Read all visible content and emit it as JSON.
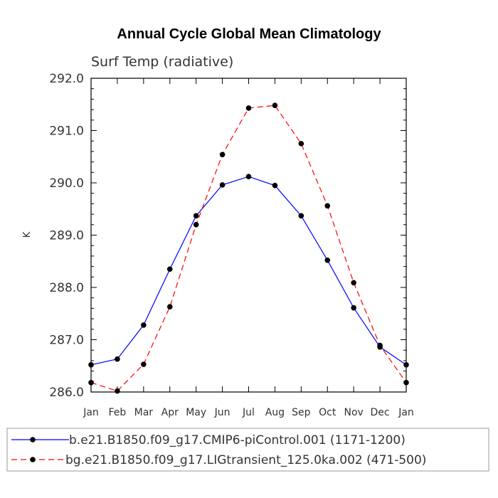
{
  "chart_data": {
    "type": "line",
    "title": "Annual Cycle Global Mean Climatology",
    "subtitle": "Surf Temp (radiative)",
    "ylabel": "K",
    "xlabel": "",
    "categories": [
      "Jan",
      "Feb",
      "Mar",
      "Apr",
      "May",
      "Jun",
      "Jul",
      "Aug",
      "Sep",
      "Oct",
      "Nov",
      "Dec",
      "Jan"
    ],
    "ylim": [
      286.0,
      292.0
    ],
    "yticks": [
      286.0,
      287.0,
      288.0,
      289.0,
      290.0,
      291.0,
      292.0
    ],
    "ytick_labels": [
      "286.0",
      "287.0",
      "288.0",
      "289.0",
      "290.0",
      "291.0",
      "292.0"
    ],
    "grid": false,
    "legend_position": "bottom",
    "series": [
      {
        "name": "b.e21.B1850.f09_g17.CMIP6-piControl.001 (1171-1200)",
        "color": "#0000ff",
        "dash": "solid",
        "values": [
          286.52,
          286.63,
          287.28,
          288.35,
          289.37,
          289.96,
          290.12,
          289.95,
          289.37,
          288.52,
          287.61,
          286.86,
          286.52
        ]
      },
      {
        "name": "bg.e21.B1850.f09_g17.LIGtransient_125.0ka.002 (471-500)",
        "color": "#ff0000",
        "dash": "dashed",
        "values": [
          286.18,
          286.02,
          286.53,
          287.63,
          289.2,
          290.54,
          291.43,
          291.48,
          290.75,
          289.56,
          288.09,
          286.89,
          286.18
        ]
      }
    ]
  }
}
